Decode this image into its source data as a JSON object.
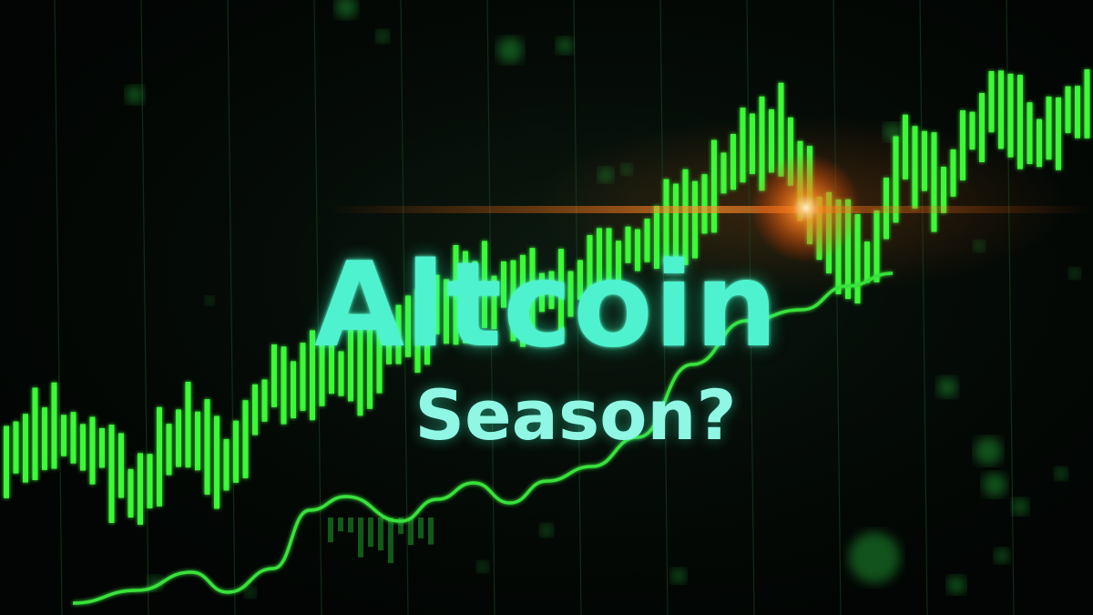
{
  "headline": {
    "line1": "Altcoin",
    "line2": "Season?"
  },
  "colors": {
    "background": "#030805",
    "candle_green": "#3dff3a",
    "candle_dim": "#1f9e2a",
    "trend_line": "#39e23a",
    "text_cyan": "#4ff2cf",
    "flare_orange": "#ff6a10"
  }
}
